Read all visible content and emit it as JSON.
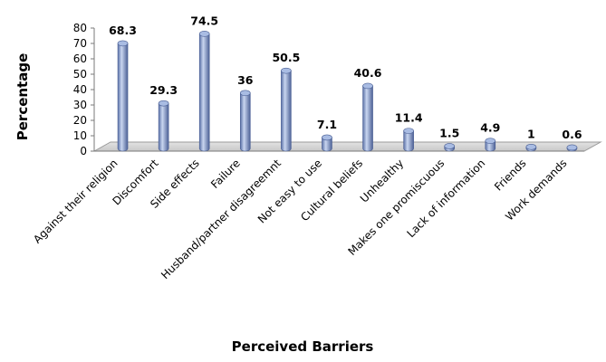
{
  "chart_data": {
    "type": "bar",
    "style": "3d-cylinder",
    "title": "",
    "xlabel": "Perceived Barriers",
    "ylabel": "Percentage",
    "ylim": [
      0,
      80
    ],
    "yticks": [
      0,
      10,
      20,
      30,
      40,
      50,
      60,
      70,
      80
    ],
    "grid": false,
    "legend": "none",
    "categories": [
      "Against their religion",
      "Discomfort",
      "Side effects",
      "Failure",
      "Husband/partner disagreemnt",
      "Not easy to use",
      "Cultural beliefs",
      "Unhealthy",
      "Makes one promiscuous",
      "Lack of information",
      "Friends",
      "Work demands"
    ],
    "values": [
      68.3,
      29.3,
      74.5,
      36,
      50.5,
      7.1,
      40.6,
      11.4,
      1.5,
      4.9,
      1,
      0.6
    ],
    "data_labels": [
      "68.3",
      "29.3",
      "74.5",
      "36",
      "50.5",
      "7.1",
      "40.6",
      "11.4",
      "1.5",
      "4.9",
      "1",
      "0.6"
    ],
    "colors": {
      "bar": "#7f96c8",
      "bar_light": "#c4d2ee",
      "bar_dark": "#4a5f94",
      "floor": "#d4d4d4"
    }
  }
}
